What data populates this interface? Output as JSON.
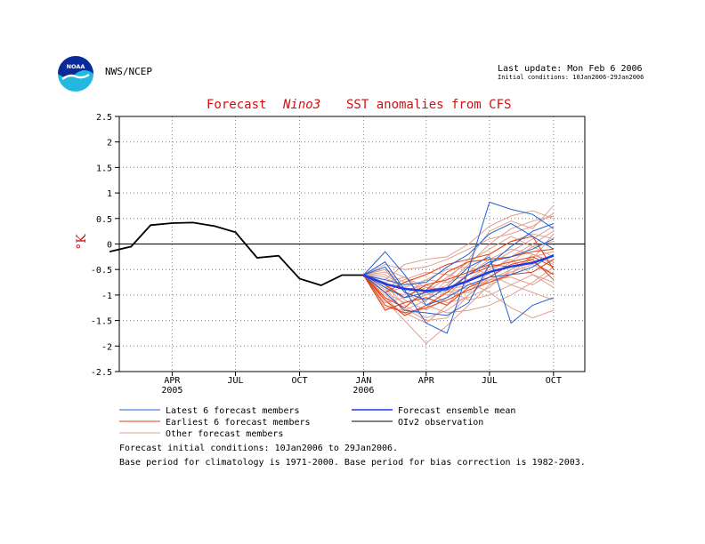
{
  "header": {
    "agency": "NWS/NCEP",
    "last_update": "Last update: Mon Feb  6 2006",
    "initial_conditions": "Initial conditions: 10Jan2006-29Jan2006",
    "logo_text": "NOAA"
  },
  "notes": {
    "line1": "Forecast initial conditions: 10Jan2006 to 29Jan2006.",
    "line2": "Base period for climatology is 1971-2000. Base period for bias correction is 1982-2003."
  },
  "colors": {
    "latest": "#2060d0",
    "earliest": "#e04010",
    "other": "#e0a090",
    "mean": "#1e3ce6",
    "obs": "#000000",
    "title": "#d01010",
    "zero_line": "#000000",
    "grid": "#808080"
  },
  "chart_data": {
    "type": "line",
    "title_parts": [
      "Forecast",
      "Nino3",
      "SST anomalies from CFS"
    ],
    "ylabel": "°K",
    "ylim": [
      -2.5,
      2.5
    ],
    "yticks": [
      -2.5,
      -2,
      -1.5,
      -1,
      -0.5,
      0,
      0.5,
      1,
      1.5,
      2,
      2.5
    ],
    "ytick_labels": [
      "-2.5",
      "-2",
      "-1.5",
      "-1",
      "-0.5",
      "0",
      "0.5",
      "1",
      "1.5",
      "2",
      "2.5"
    ],
    "xlim": [
      "2005-01-15",
      "2006-11-15"
    ],
    "xticks": [
      {
        "date": "2005-04-01",
        "label": "APR",
        "sublabel": "2005"
      },
      {
        "date": "2005-07-01",
        "label": "JUL",
        "sublabel": ""
      },
      {
        "date": "2005-10-01",
        "label": "OCT",
        "sublabel": ""
      },
      {
        "date": "2006-01-01",
        "label": "JAN",
        "sublabel": "2006"
      },
      {
        "date": "2006-04-01",
        "label": "APR",
        "sublabel": ""
      },
      {
        "date": "2006-07-01",
        "label": "JUL",
        "sublabel": ""
      },
      {
        "date": "2006-10-01",
        "label": "OCT",
        "sublabel": ""
      }
    ],
    "grid": true,
    "legend_position": "bottom",
    "legend": {
      "latest": "Latest 6 forecast members",
      "earliest": "Earliest 6 forecast members",
      "other": "Other forecast members",
      "mean": "Forecast ensemble mean",
      "obs": "OIv2 observation"
    },
    "observation": {
      "x": [
        "2005-01-01",
        "2005-02-01",
        "2005-03-01",
        "2005-04-01",
        "2005-05-01",
        "2005-06-01",
        "2005-07-01",
        "2005-08-01",
        "2005-09-01",
        "2005-10-01",
        "2005-11-01",
        "2005-12-01",
        "2006-01-01"
      ],
      "y": [
        -0.15,
        -0.05,
        0.37,
        0.41,
        0.42,
        0.35,
        0.23,
        -0.27,
        -0.23,
        -0.68,
        -0.81,
        -0.61,
        -0.61
      ]
    },
    "forecast_months": [
      "2006-01-01",
      "2006-02-01",
      "2006-03-01",
      "2006-04-01",
      "2006-05-01",
      "2006-06-01",
      "2006-07-01",
      "2006-08-01",
      "2006-09-01",
      "2006-10-01"
    ],
    "ensemble_mean": [
      -0.61,
      -0.78,
      -0.88,
      -0.92,
      -0.87,
      -0.72,
      -0.55,
      -0.44,
      -0.37,
      -0.23
    ],
    "latest_members": [
      [
        -0.61,
        -0.35,
        -0.9,
        -1.55,
        -1.75,
        -0.5,
        0.82,
        0.68,
        0.58,
        0.3
      ],
      [
        -0.61,
        -0.15,
        -0.6,
        -1.2,
        -1.05,
        -0.8,
        -0.65,
        -0.6,
        -0.45,
        -0.2
      ],
      [
        -0.61,
        -0.45,
        -0.95,
        -1.1,
        -0.85,
        -0.45,
        -0.25,
        -1.55,
        -1.2,
        -1.05
      ],
      [
        -0.61,
        -0.95,
        -1.3,
        -1.35,
        -1.4,
        -1.15,
        -0.4,
        -0.05,
        0.25,
        0.4
      ],
      [
        -0.61,
        -0.7,
        -0.8,
        -0.75,
        -0.45,
        -0.2,
        0.2,
        0.4,
        0.15,
        -0.1
      ],
      [
        -0.61,
        -0.85,
        -1.05,
        -0.95,
        -0.9,
        -0.6,
        -0.35,
        -0.25,
        -0.1,
        0.1
      ]
    ],
    "earliest_members": [
      [
        -0.61,
        -1.2,
        -1.35,
        -1.25,
        -1.1,
        -0.9,
        -0.75,
        -0.6,
        -0.55,
        -0.3
      ],
      [
        -0.61,
        -1.05,
        -1.25,
        -0.9,
        -0.55,
        -0.35,
        -0.3,
        -0.25,
        -0.15,
        -0.1
      ],
      [
        -0.61,
        -1.3,
        -1.15,
        -1.05,
        -1.2,
        -0.85,
        -0.65,
        -0.4,
        -0.3,
        -0.7
      ],
      [
        -0.61,
        -0.95,
        -0.75,
        -0.6,
        -0.4,
        -0.3,
        -0.2,
        0.05,
        0.15,
        -0.5
      ],
      [
        -0.61,
        -1.1,
        -1.4,
        -1.2,
        -0.95,
        -0.6,
        -0.45,
        -0.35,
        -0.25,
        -0.45
      ],
      [
        -0.61,
        -0.8,
        -1.05,
        -0.8,
        -0.7,
        -0.55,
        -0.4,
        -0.45,
        -0.35,
        -0.6
      ]
    ],
    "other_members": [
      [
        -0.61,
        -0.8,
        -1.2,
        -1.45,
        -1.3,
        -1.0,
        -0.7,
        -0.5,
        -0.3,
        0.2
      ],
      [
        -0.61,
        -0.6,
        -0.85,
        -1.0,
        -0.8,
        -0.4,
        0.0,
        0.3,
        0.45,
        0.55
      ],
      [
        -0.61,
        -1.1,
        -1.5,
        -1.95,
        -1.6,
        -1.2,
        -0.8,
        -0.6,
        -0.2,
        -0.4
      ],
      [
        -0.61,
        -0.4,
        -0.5,
        -0.45,
        -0.3,
        -0.1,
        0.1,
        0.2,
        0.35,
        0.6
      ],
      [
        -0.61,
        -0.9,
        -1.0,
        -0.7,
        -0.5,
        -0.45,
        -0.6,
        -0.8,
        -0.95,
        -1.1
      ],
      [
        -0.61,
        -0.75,
        -0.65,
        -0.95,
        -1.15,
        -1.05,
        -0.85,
        -0.5,
        -0.25,
        -0.15
      ],
      [
        -0.61,
        -1.25,
        -1.3,
        -1.1,
        -0.7,
        -0.3,
        0.25,
        0.45,
        0.3,
        0.75
      ],
      [
        -0.61,
        -0.5,
        -0.95,
        -1.2,
        -1.35,
        -1.3,
        -1.2,
        -1.0,
        -0.75,
        -0.45
      ],
      [
        -0.61,
        -0.85,
        -0.7,
        -0.55,
        -0.6,
        -0.7,
        -0.5,
        -0.3,
        -0.6,
        -0.85
      ],
      [
        -0.61,
        -0.95,
        -1.15,
        -1.0,
        -0.85,
        -0.75,
        -0.95,
        -1.25,
        -1.45,
        -1.3
      ],
      [
        -0.61,
        -0.7,
        -0.4,
        -0.3,
        -0.25,
        0.0,
        0.35,
        0.55,
        0.65,
        0.5
      ],
      [
        -0.61,
        -1.0,
        -1.25,
        -1.5,
        -1.45,
        -1.0,
        -0.65,
        -0.35,
        -0.05,
        0.05
      ],
      [
        -0.61,
        -0.65,
        -0.9,
        -0.8,
        -0.95,
        -0.85,
        -0.7,
        -0.65,
        -0.8,
        -0.55
      ],
      [
        -0.61,
        -0.85,
        -1.35,
        -1.55,
        -1.2,
        -0.7,
        -0.4,
        -0.15,
        0.1,
        0.35
      ],
      [
        -0.61,
        -0.55,
        -0.75,
        -0.95,
        -0.65,
        -0.35,
        -0.1,
        0.15,
        -0.05,
        -0.25
      ],
      [
        -0.61,
        -1.15,
        -1.05,
        -0.85,
        -0.9,
        -1.1,
        -1.0,
        -0.8,
        -0.6,
        -0.75
      ],
      [
        -0.61,
        -0.75,
        -1.1,
        -1.3,
        -1.05,
        -0.55,
        -0.2,
        0.05,
        0.2,
        0.1
      ],
      [
        -0.61,
        -0.95,
        -0.85,
        -0.7,
        -0.75,
        -0.6,
        -0.3,
        -0.1,
        -0.2,
        -0.35
      ],
      [
        -0.61,
        -0.5,
        -0.65,
        -0.85,
        -1.0,
        -0.95,
        -0.55,
        -0.25,
        0.0,
        0.25
      ],
      [
        -0.61,
        -1.05,
        -1.4,
        -1.25,
        -0.9,
        -0.8,
        -0.75,
        -0.55,
        -0.4,
        -0.6
      ]
    ]
  }
}
